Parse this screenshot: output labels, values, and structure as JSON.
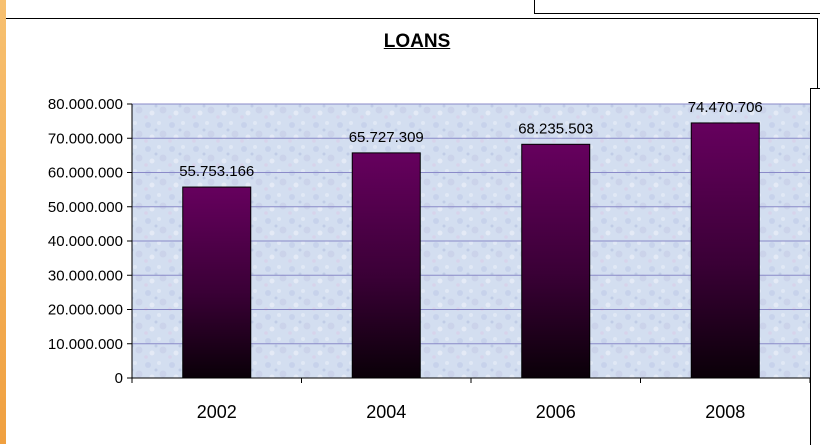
{
  "chart_data": {
    "type": "bar",
    "title": "LOANS",
    "categories": [
      "2002",
      "2004",
      "2006",
      "2008"
    ],
    "values": [
      55753166,
      65727309,
      68235503,
      74470706
    ],
    "value_labels": [
      "55.753.166",
      "65.727.309",
      "68.235.503",
      "74.470.706"
    ],
    "y_ticks": [
      "0",
      "10.000.000",
      "20.000.000",
      "30.000.000",
      "40.000.000",
      "50.000.000",
      "60.000.000",
      "70.000.000",
      "80.000.000"
    ],
    "ylim": [
      0,
      80000000
    ],
    "grid": true,
    "colors": {
      "bar_top": "#66005e",
      "bar_bottom": "#0a0008",
      "plot_bg": "#d2ddef",
      "grid": "#8a8ac8"
    }
  }
}
